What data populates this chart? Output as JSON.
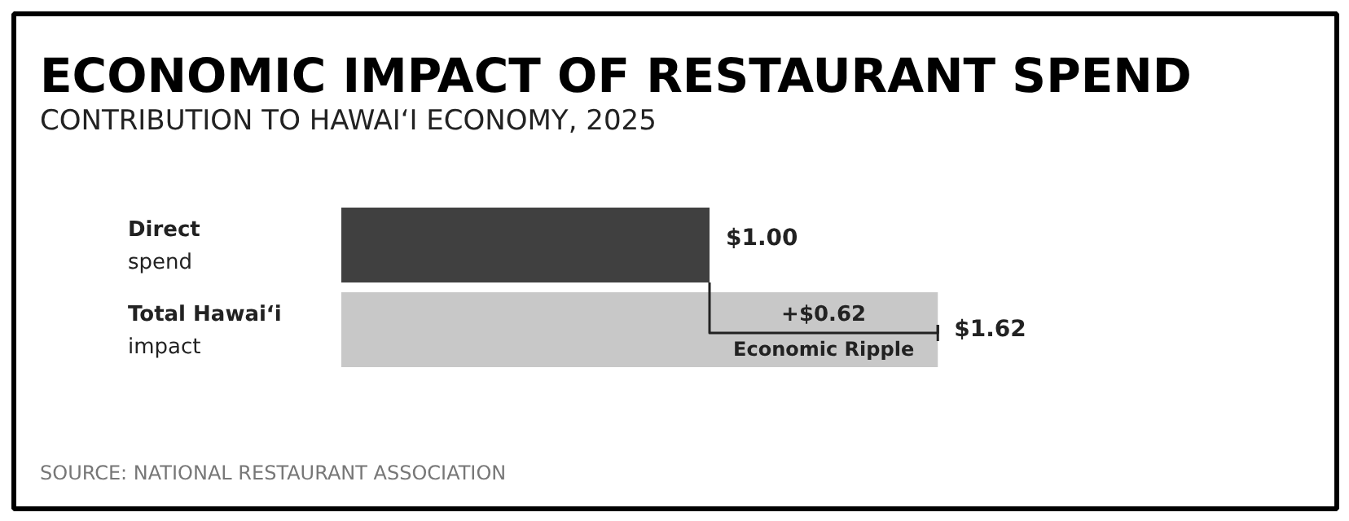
{
  "chart_data": {
    "type": "bar",
    "orientation": "horizontal",
    "title": "ECONOMIC IMPACT OF RESTAURANT SPEND",
    "subtitle": "CONTRIBUTION TO HAWAI‘I ECONOMY, 2025",
    "categories": [
      "Direct spend",
      "Total Hawai‘i impact"
    ],
    "values": [
      1.0,
      1.62
    ],
    "colors": [
      "#404040",
      "#c8c8c8"
    ],
    "value_labels": [
      "$1.00",
      "$1.62"
    ],
    "annotations": [
      "+$0.62\nEconomic Ripple",
      "SOURCE: NATIONAL RESTAURANT ASSOCIATION"
    ],
    "grid": false
  }
}
